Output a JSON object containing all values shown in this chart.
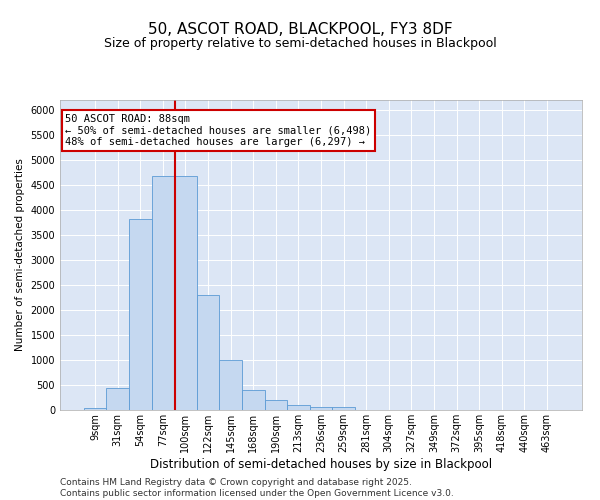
{
  "title": "50, ASCOT ROAD, BLACKPOOL, FY3 8DF",
  "subtitle": "Size of property relative to semi-detached houses in Blackpool",
  "xlabel": "Distribution of semi-detached houses by size in Blackpool",
  "ylabel": "Number of semi-detached properties",
  "categories": [
    "9sqm",
    "31sqm",
    "54sqm",
    "77sqm",
    "100sqm",
    "122sqm",
    "145sqm",
    "168sqm",
    "190sqm",
    "213sqm",
    "236sqm",
    "259sqm",
    "281sqm",
    "304sqm",
    "327sqm",
    "349sqm",
    "372sqm",
    "395sqm",
    "418sqm",
    "440sqm",
    "463sqm"
  ],
  "values": [
    50,
    440,
    3820,
    4680,
    4680,
    2300,
    1000,
    410,
    200,
    100,
    70,
    60,
    0,
    0,
    0,
    0,
    0,
    0,
    0,
    0,
    0
  ],
  "bar_color": "#c5d8f0",
  "bar_edge_color": "#5b9bd5",
  "vline_position": 3.55,
  "vline_color": "#cc0000",
  "annotation_text": "50 ASCOT ROAD: 88sqm\n← 50% of semi-detached houses are smaller (6,498)\n48% of semi-detached houses are larger (6,297) →",
  "annotation_box_color": "#ffffff",
  "annotation_box_edge": "#cc0000",
  "ylim": [
    0,
    6200
  ],
  "yticks": [
    0,
    500,
    1000,
    1500,
    2000,
    2500,
    3000,
    3500,
    4000,
    4500,
    5000,
    5500,
    6000
  ],
  "background_color": "#dce6f5",
  "footer": "Contains HM Land Registry data © Crown copyright and database right 2025.\nContains public sector information licensed under the Open Government Licence v3.0.",
  "title_fontsize": 11,
  "subtitle_fontsize": 9,
  "xlabel_fontsize": 8.5,
  "ylabel_fontsize": 7.5,
  "tick_fontsize": 7,
  "footer_fontsize": 6.5,
  "annotation_fontsize": 7.5
}
